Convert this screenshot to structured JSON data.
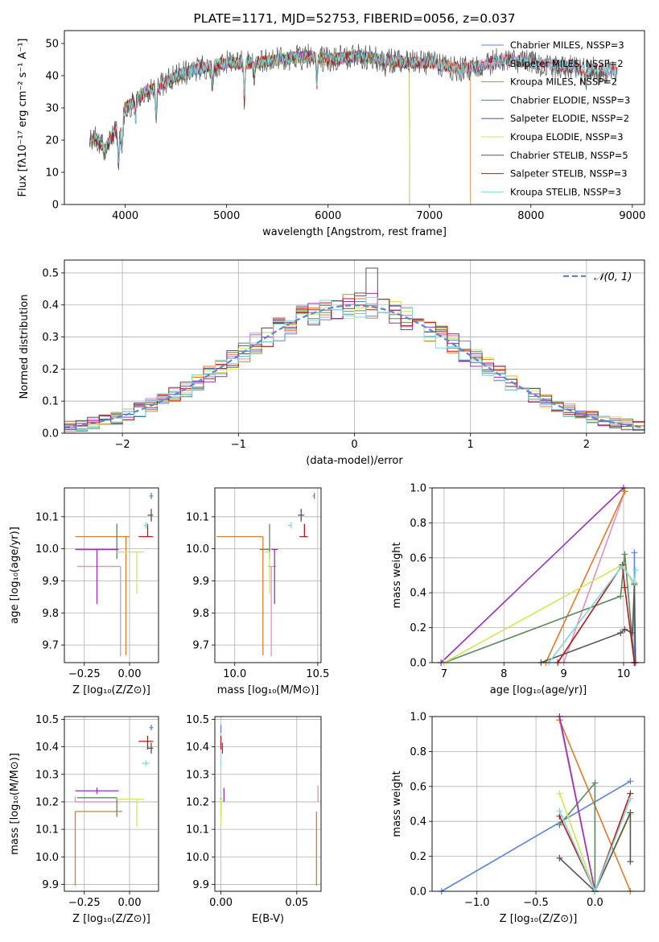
{
  "chart_data": [
    {
      "type": "line",
      "id": "spectrum",
      "title": "PLATE=1171, MJD=52753, FIBERID=0056, z=0.037",
      "xlabel": "wavelength [Angstrom, rest frame]",
      "ylabel": "Flux [fλ10⁻¹⁷ erg cm⁻² s⁻¹ A⁻¹]",
      "xlim": [
        3400,
        9120
      ],
      "ylim": [
        0,
        54
      ],
      "xticks": [
        "4000",
        "5000",
        "6000",
        "7000",
        "8000",
        "9000"
      ],
      "yticks": [
        "0",
        "10",
        "20",
        "30",
        "40",
        "50"
      ],
      "grid": false,
      "legend_position": "top-right",
      "series": [
        {
          "name": "Chabrier MILES, NSSP=3",
          "color": "#5b86d6",
          "lambda_max": 8850,
          "noise": 2.0
        },
        {
          "name": "Salpeter MILES, NSSP=2",
          "color": "#e48fc0",
          "lambda_max": 8850,
          "noise": 2.0
        },
        {
          "name": "Kroupa MILES, NSSP=2",
          "color": "#e07b2d",
          "lambda_max": 7400,
          "noise": 2.0
        },
        {
          "name": "Chabrier ELODIE, NSSP=3",
          "color": "#5a8a5e",
          "lambda_max": 6800,
          "noise": 2.0
        },
        {
          "name": "Salpeter ELODIE, NSSP=2",
          "color": "#9a2fb8",
          "lambda_max": 6800,
          "noise": 2.0
        },
        {
          "name": "Kroupa ELODIE, NSSP=3",
          "color": "#cfe75a",
          "lambda_max": 6800,
          "noise": 2.0
        },
        {
          "name": "Chabrier STELIB, NSSP=5",
          "color": "#555555",
          "lambda_max": 8850,
          "noise": 4.0
        },
        {
          "name": "Salpeter STELIB, NSSP=3",
          "color": "#b51a1a",
          "lambda_max": 8850,
          "noise": 2.0
        },
        {
          "name": "Kroupa STELIB, NSSP=3",
          "color": "#7fd9dd",
          "lambda_max": 8850,
          "noise": 2.0
        }
      ],
      "continuum": {
        "x": [
          3650,
          3700,
          3800,
          3900,
          3950,
          4000,
          4100,
          4200,
          4300,
          4500,
          4700,
          5000,
          5300,
          5500,
          5800,
          6000,
          6300,
          6500,
          6800,
          7000,
          7300,
          7500,
          7700,
          8000,
          8300,
          8600,
          8850
        ],
        "y": [
          19,
          21,
          17,
          23,
          22,
          30,
          32,
          35,
          36,
          40,
          42,
          44,
          44,
          45,
          46,
          45,
          46,
          45,
          44,
          44,
          42,
          43,
          45,
          44,
          43,
          42,
          41
        ]
      }
    },
    {
      "type": "histogram",
      "id": "residuals",
      "xlabel": "(data-model)/error",
      "ylabel": "Normed distribution",
      "xlim": [
        -2.5,
        2.5
      ],
      "ylim": [
        0,
        0.54
      ],
      "xticks": [
        -2,
        -1,
        0,
        1,
        2
      ],
      "xtick_labels": [
        "−2",
        "−1",
        "0",
        "1",
        "2"
      ],
      "yticks": [
        "0.0",
        "0.1",
        "0.2",
        "0.3",
        "0.4",
        "0.5"
      ],
      "grid": true,
      "legend": "𝒩(0, 1)",
      "legend_position": "top-right",
      "reference_curve": {
        "type": "normal",
        "mean": 0,
        "sigma": 1,
        "style": "dashed",
        "color": "#5b86d6"
      },
      "bin_width": 0.1,
      "series_colors": [
        "#5b86d6",
        "#e48fc0",
        "#e07b2d",
        "#5a8a5e",
        "#9a2fb8",
        "#cfe75a",
        "#555555",
        "#b51a1a",
        "#7fd9dd"
      ],
      "series_noise": 0.03,
      "max_bin": {
        "x": 0.15,
        "y": 0.515
      }
    },
    {
      "type": "scatter",
      "id": "age-vs-Z",
      "xlabel": "Z [log₁₀(Z/Z⊙)]",
      "ylabel": "age  [log₁₀(age/yr)]",
      "xlim": [
        -0.36,
        0.16
      ],
      "ylim": [
        9.645,
        10.19
      ],
      "xticks": [
        -0.25,
        0.0
      ],
      "xtick_labels": [
        "−0.25",
        "0.00"
      ],
      "yticks": [
        9.7,
        9.8,
        9.9,
        10.0,
        10.1
      ],
      "ytick_labels": [
        "9.7",
        "9.8",
        "9.9",
        "10.0",
        "10.1"
      ],
      "grid": true,
      "points": [
        {
          "color": "#5b86d6",
          "x": 0.12,
          "y": 10.165,
          "xerr_lo": 0.01,
          "xerr_hi": 0.01,
          "yerr_lo": 0.01,
          "yerr_hi": 0.01
        },
        {
          "color": "#e48fc0",
          "x": -0.05,
          "y": 9.945,
          "xerr_lo": 0.24,
          "xerr_hi": 0.0,
          "yerr_lo": 0.28,
          "yerr_hi": 0.0
        },
        {
          "color": "#e07b2d",
          "x": -0.02,
          "y": 10.038,
          "xerr_lo": 0.28,
          "xerr_hi": 0.02,
          "yerr_lo": 0.37,
          "yerr_hi": 0.0
        },
        {
          "color": "#5a8a5e",
          "x": -0.07,
          "y": 9.998,
          "xerr_lo": 0.22,
          "xerr_hi": 0.0,
          "yerr_lo": 0.03,
          "yerr_hi": 0.08
        },
        {
          "color": "#9a2fb8",
          "x": -0.18,
          "y": 9.998,
          "xerr_lo": 0.12,
          "xerr_hi": 0.12,
          "yerr_lo": 0.17,
          "yerr_hi": 0.0
        },
        {
          "color": "#cfe75a",
          "x": 0.04,
          "y": 9.99,
          "xerr_lo": 0.11,
          "xerr_hi": 0.04,
          "yerr_lo": 0.13,
          "yerr_hi": 0.0
        },
        {
          "color": "#555555",
          "x": 0.12,
          "y": 10.105,
          "xerr_lo": 0.02,
          "xerr_hi": 0.01,
          "yerr_lo": 0.02,
          "yerr_hi": 0.02
        },
        {
          "color": "#b51a1a",
          "x": 0.1,
          "y": 10.038,
          "xerr_lo": 0.05,
          "xerr_hi": 0.03,
          "yerr_lo": 0.0,
          "yerr_hi": 0.04
        },
        {
          "color": "#7fd9dd",
          "x": 0.09,
          "y": 10.073,
          "xerr_lo": 0.01,
          "xerr_hi": 0.01,
          "yerr_lo": 0.01,
          "yerr_hi": 0.01
        }
      ]
    },
    {
      "type": "scatter",
      "id": "age-vs-mass",
      "xlabel": "mass [log₁₀(M/M⊙)]",
      "ylabel": "",
      "xlim": [
        9.88,
        10.52
      ],
      "ylim": [
        9.645,
        10.19
      ],
      "xticks": [
        10.0,
        10.5
      ],
      "xtick_labels": [
        "10.0",
        "10.5"
      ],
      "yticks": [
        9.7,
        9.8,
        9.9,
        10.0,
        10.1
      ],
      "ytick_labels": [
        "9.7",
        "9.8",
        "9.9",
        "10.0",
        "10.1"
      ],
      "grid": true,
      "points": [
        {
          "color": "#5b86d6",
          "x": 10.48,
          "y": 10.165,
          "xerr_lo": 0.01,
          "xerr_hi": 0.0,
          "yerr_lo": 0.01,
          "yerr_hi": 0.01
        },
        {
          "color": "#e48fc0",
          "x": 10.22,
          "y": 9.945,
          "xerr_lo": 0.02,
          "xerr_hi": 0.03,
          "yerr_lo": 0.28,
          "yerr_hi": 0.0
        },
        {
          "color": "#e07b2d",
          "x": 10.17,
          "y": 10.038,
          "xerr_lo": 0.28,
          "xerr_hi": 0.0,
          "yerr_lo": 0.37,
          "yerr_hi": 0.0
        },
        {
          "color": "#5a8a5e",
          "x": 10.21,
          "y": 9.998,
          "xerr_lo": 0.06,
          "xerr_hi": 0.0,
          "yerr_lo": 0.03,
          "yerr_hi": 0.08
        },
        {
          "color": "#9a2fb8",
          "x": 10.24,
          "y": 9.998,
          "xerr_lo": 0.0,
          "xerr_hi": 0.0,
          "yerr_lo": 0.17,
          "yerr_hi": 0.0
        },
        {
          "color": "#cfe75a",
          "x": 10.21,
          "y": 9.99,
          "xerr_lo": 0.03,
          "xerr_hi": 0.0,
          "yerr_lo": 0.13,
          "yerr_hi": 0.0
        },
        {
          "color": "#555555",
          "x": 10.4,
          "y": 10.105,
          "xerr_lo": 0.0,
          "xerr_hi": 0.0,
          "yerr_lo": 0.02,
          "yerr_hi": 0.02
        },
        {
          "color": "#b51a1a",
          "x": 10.42,
          "y": 10.038,
          "xerr_lo": 0.03,
          "xerr_hi": 0.02,
          "yerr_lo": 0.0,
          "yerr_hi": 0.04
        },
        {
          "color": "#7fd9dd",
          "x": 10.34,
          "y": 10.073,
          "xerr_lo": 0.02,
          "xerr_hi": 0.0,
          "yerr_lo": 0.01,
          "yerr_hi": 0.01
        }
      ]
    },
    {
      "type": "line",
      "id": "mass-weight-vs-age",
      "xlabel": "age  [log₁₀(age/yr)]",
      "ylabel": "mass weight",
      "xlim": [
        6.8,
        10.35
      ],
      "ylim": [
        0.0,
        1.0
      ],
      "xticks": [
        7,
        8,
        9,
        10
      ],
      "xtick_labels": [
        "7",
        "8",
        "9",
        "10"
      ],
      "yticks": [
        0.0,
        0.2,
        0.4,
        0.6,
        0.8,
        1.0
      ],
      "ytick_labels": [
        "0.0",
        "0.2",
        "0.4",
        "0.6",
        "0.8",
        "1.0"
      ],
      "grid": true,
      "series": [
        {
          "color": "#5b86d6",
          "x": [
            10.18,
            10.18
          ],
          "y": [
            0.0,
            0.63
          ]
        },
        {
          "color": "#e48fc0",
          "x": [
            9.0,
            10.02
          ],
          "y": [
            0.0,
            0.98
          ]
        },
        {
          "color": "#e07b2d",
          "x": [
            8.7,
            10.02
          ],
          "y": [
            0.0,
            0.98
          ]
        },
        {
          "color": "#5a8a5e",
          "x": [
            7.0,
            9.95,
            10.02,
            10.18
          ],
          "y": [
            0.0,
            0.38,
            0.62,
            0.0
          ]
        },
        {
          "color": "#9a2fb8",
          "x": [
            6.95,
            10.0
          ],
          "y": [
            0.0,
            1.0
          ]
        },
        {
          "color": "#cfe75a",
          "x": [
            7.0,
            9.98,
            10.18
          ],
          "y": [
            0.0,
            0.56,
            0.44
          ]
        },
        {
          "color": "#555555",
          "x": [
            8.62,
            9.95,
            10.02,
            10.15,
            10.18,
            10.2
          ],
          "y": [
            0.0,
            0.17,
            0.19,
            0.17,
            0.45,
            0.0
          ]
        },
        {
          "color": "#b51a1a",
          "x": [
            8.9,
            9.98,
            10.02,
            10.18
          ],
          "y": [
            0.0,
            0.56,
            0.43,
            0.0
          ]
        },
        {
          "color": "#7fd9dd",
          "x": [
            8.75,
            9.97,
            10.18,
            10.2
          ],
          "y": [
            0.0,
            0.55,
            0.46,
            0.53
          ]
        }
      ]
    },
    {
      "type": "scatter",
      "id": "mass-vs-Z",
      "xlabel": "Z [log₁₀(Z/Z⊙)]",
      "ylabel": "mass [log₁₀(M/M⊙)]",
      "xlim": [
        -0.36,
        0.16
      ],
      "ylim": [
        9.875,
        10.51
      ],
      "xticks": [
        -0.25,
        0.0
      ],
      "xtick_labels": [
        "−0.25",
        "0.00"
      ],
      "yticks": [
        9.9,
        10.0,
        10.1,
        10.2,
        10.3,
        10.4,
        10.5
      ],
      "ytick_labels": [
        "9.9",
        "10.0",
        "10.1",
        "10.2",
        "10.3",
        "10.4",
        "10.5"
      ],
      "grid": true,
      "points": [
        {
          "color": "#5b86d6",
          "x": 0.12,
          "y": 10.47,
          "xerr_lo": 0.01,
          "xerr_hi": 0.01,
          "yerr_lo": 0.01,
          "yerr_hi": 0.01
        },
        {
          "color": "#e48fc0",
          "x": -0.3,
          "y": 10.2,
          "xerr_lo": 0.0,
          "xerr_hi": 0.24,
          "yerr_lo": 0.0,
          "yerr_hi": 0.02
        },
        {
          "color": "#e07b2d",
          "x": -0.3,
          "y": 10.165,
          "xerr_lo": 0.0,
          "xerr_hi": 0.26,
          "yerr_lo": 0.27,
          "yerr_hi": 0.0
        },
        {
          "color": "#5a8a5e",
          "x": -0.07,
          "y": 10.215,
          "xerr_lo": 0.22,
          "xerr_hi": 0.0,
          "yerr_lo": 0.07,
          "yerr_hi": 0.0
        },
        {
          "color": "#9a2fb8",
          "x": -0.18,
          "y": 10.24,
          "xerr_lo": 0.12,
          "xerr_hi": 0.12,
          "yerr_lo": 0.0,
          "yerr_hi": 0.0
        },
        {
          "color": "#cfe75a",
          "x": 0.04,
          "y": 10.21,
          "xerr_lo": 0.11,
          "xerr_hi": 0.04,
          "yerr_lo": 0.1,
          "yerr_hi": 0.0
        },
        {
          "color": "#555555",
          "x": 0.12,
          "y": 10.395,
          "xerr_lo": 0.02,
          "xerr_hi": 0.01,
          "yerr_lo": 0.02,
          "yerr_hi": 0.02
        },
        {
          "color": "#b51a1a",
          "x": 0.1,
          "y": 10.42,
          "xerr_lo": 0.05,
          "xerr_hi": 0.03,
          "yerr_lo": 0.03,
          "yerr_hi": 0.02
        },
        {
          "color": "#7fd9dd",
          "x": 0.09,
          "y": 10.34,
          "xerr_lo": 0.02,
          "xerr_hi": 0.02,
          "yerr_lo": 0.01,
          "yerr_hi": 0.01
        }
      ]
    },
    {
      "type": "scatter",
      "id": "mass-vs-ebv",
      "xlabel": "E(B-V)",
      "ylabel": "",
      "xlim": [
        -0.004,
        0.066
      ],
      "ylim": [
        9.875,
        10.51
      ],
      "xticks": [
        0.0,
        0.05
      ],
      "xtick_labels": [
        "0.00",
        "0.05"
      ],
      "yticks": [
        9.9,
        10.0,
        10.1,
        10.2,
        10.3,
        10.4,
        10.5
      ],
      "ytick_labels": [
        "9.9",
        "10.0",
        "10.1",
        "10.2",
        "10.3",
        "10.4",
        "10.5"
      ],
      "grid": true,
      "points": [
        {
          "color": "#5b86d6",
          "x": 0.0,
          "y": 10.47,
          "yerr_lo": 0.02,
          "yerr_hi": 0.01
        },
        {
          "color": "#e48fc0",
          "x": 0.064,
          "y": 10.2,
          "yerr_lo": 0.0,
          "yerr_hi": 0.06
        },
        {
          "color": "#e07b2d",
          "x": 0.063,
          "y": 10.165,
          "yerr_lo": 0.27,
          "yerr_hi": 0.0
        },
        {
          "color": "#5a8a5e",
          "x": 0.0,
          "y": 10.215,
          "yerr_lo": 0.07,
          "yerr_hi": 0.0
        },
        {
          "color": "#9a2fb8",
          "x": 0.002,
          "y": 10.2,
          "yerr_lo": 0.0,
          "yerr_hi": 0.05
        },
        {
          "color": "#cfe75a",
          "x": 0.0,
          "y": 10.21,
          "yerr_lo": 0.1,
          "yerr_hi": 0.0
        },
        {
          "color": "#555555",
          "x": 0.001,
          "y": 10.395,
          "yerr_lo": 0.02,
          "yerr_hi": 0.02
        },
        {
          "color": "#b51a1a",
          "x": 0.0,
          "y": 10.42,
          "yerr_lo": 0.03,
          "yerr_hi": 0.02
        },
        {
          "color": "#7fd9dd",
          "x": 0.0,
          "y": 10.34,
          "yerr_lo": 0.01,
          "yerr_hi": 0.01
        }
      ]
    },
    {
      "type": "line",
      "id": "mass-weight-vs-Z",
      "xlabel": "Z [log₁₀(Z/Z⊙)]",
      "ylabel": "mass weight",
      "xlim": [
        -1.38,
        0.42
      ],
      "ylim": [
        0.0,
        1.0
      ],
      "xticks": [
        -1.0,
        -0.5,
        0.0
      ],
      "xtick_labels": [
        "−1.0",
        "−0.5",
        "0.0"
      ],
      "yticks": [
        0.0,
        0.2,
        0.4,
        0.6,
        0.8,
        1.0
      ],
      "ytick_labels": [
        "0.0",
        "0.2",
        "0.4",
        "0.6",
        "0.8",
        "1.0"
      ],
      "grid": true,
      "series": [
        {
          "color": "#5b86d6",
          "x": [
            -1.3,
            0.3
          ],
          "y": [
            0.0,
            0.63
          ]
        },
        {
          "color": "#e48fc0",
          "x": [
            -0.3,
            0.0
          ],
          "y": [
            0.98,
            0.0
          ]
        },
        {
          "color": "#e07b2d",
          "x": [
            -0.3,
            0.3
          ],
          "y": [
            0.98,
            0.0
          ]
        },
        {
          "color": "#5a8a5e",
          "x": [
            -0.3,
            0.0,
            0.0
          ],
          "y": [
            0.38,
            0.62,
            0.0
          ]
        },
        {
          "color": "#9a2fb8",
          "x": [
            -0.3,
            0.0
          ],
          "y": [
            1.0,
            0.0
          ]
        },
        {
          "color": "#cfe75a",
          "x": [
            -0.3,
            0.0,
            0.3
          ],
          "y": [
            0.56,
            0.0,
            0.44
          ]
        },
        {
          "color": "#555555",
          "x": [
            -0.3,
            0.0,
            0.3,
            0.3
          ],
          "y": [
            0.19,
            0.0,
            0.45,
            0.17
          ]
        },
        {
          "color": "#b51a1a",
          "x": [
            -0.3,
            0.0,
            0.3
          ],
          "y": [
            0.43,
            0.0,
            0.56
          ]
        },
        {
          "color": "#7fd9dd",
          "x": [
            -0.3,
            0.0,
            0.3
          ],
          "y": [
            0.46,
            0.0,
            0.53
          ]
        }
      ]
    }
  ]
}
